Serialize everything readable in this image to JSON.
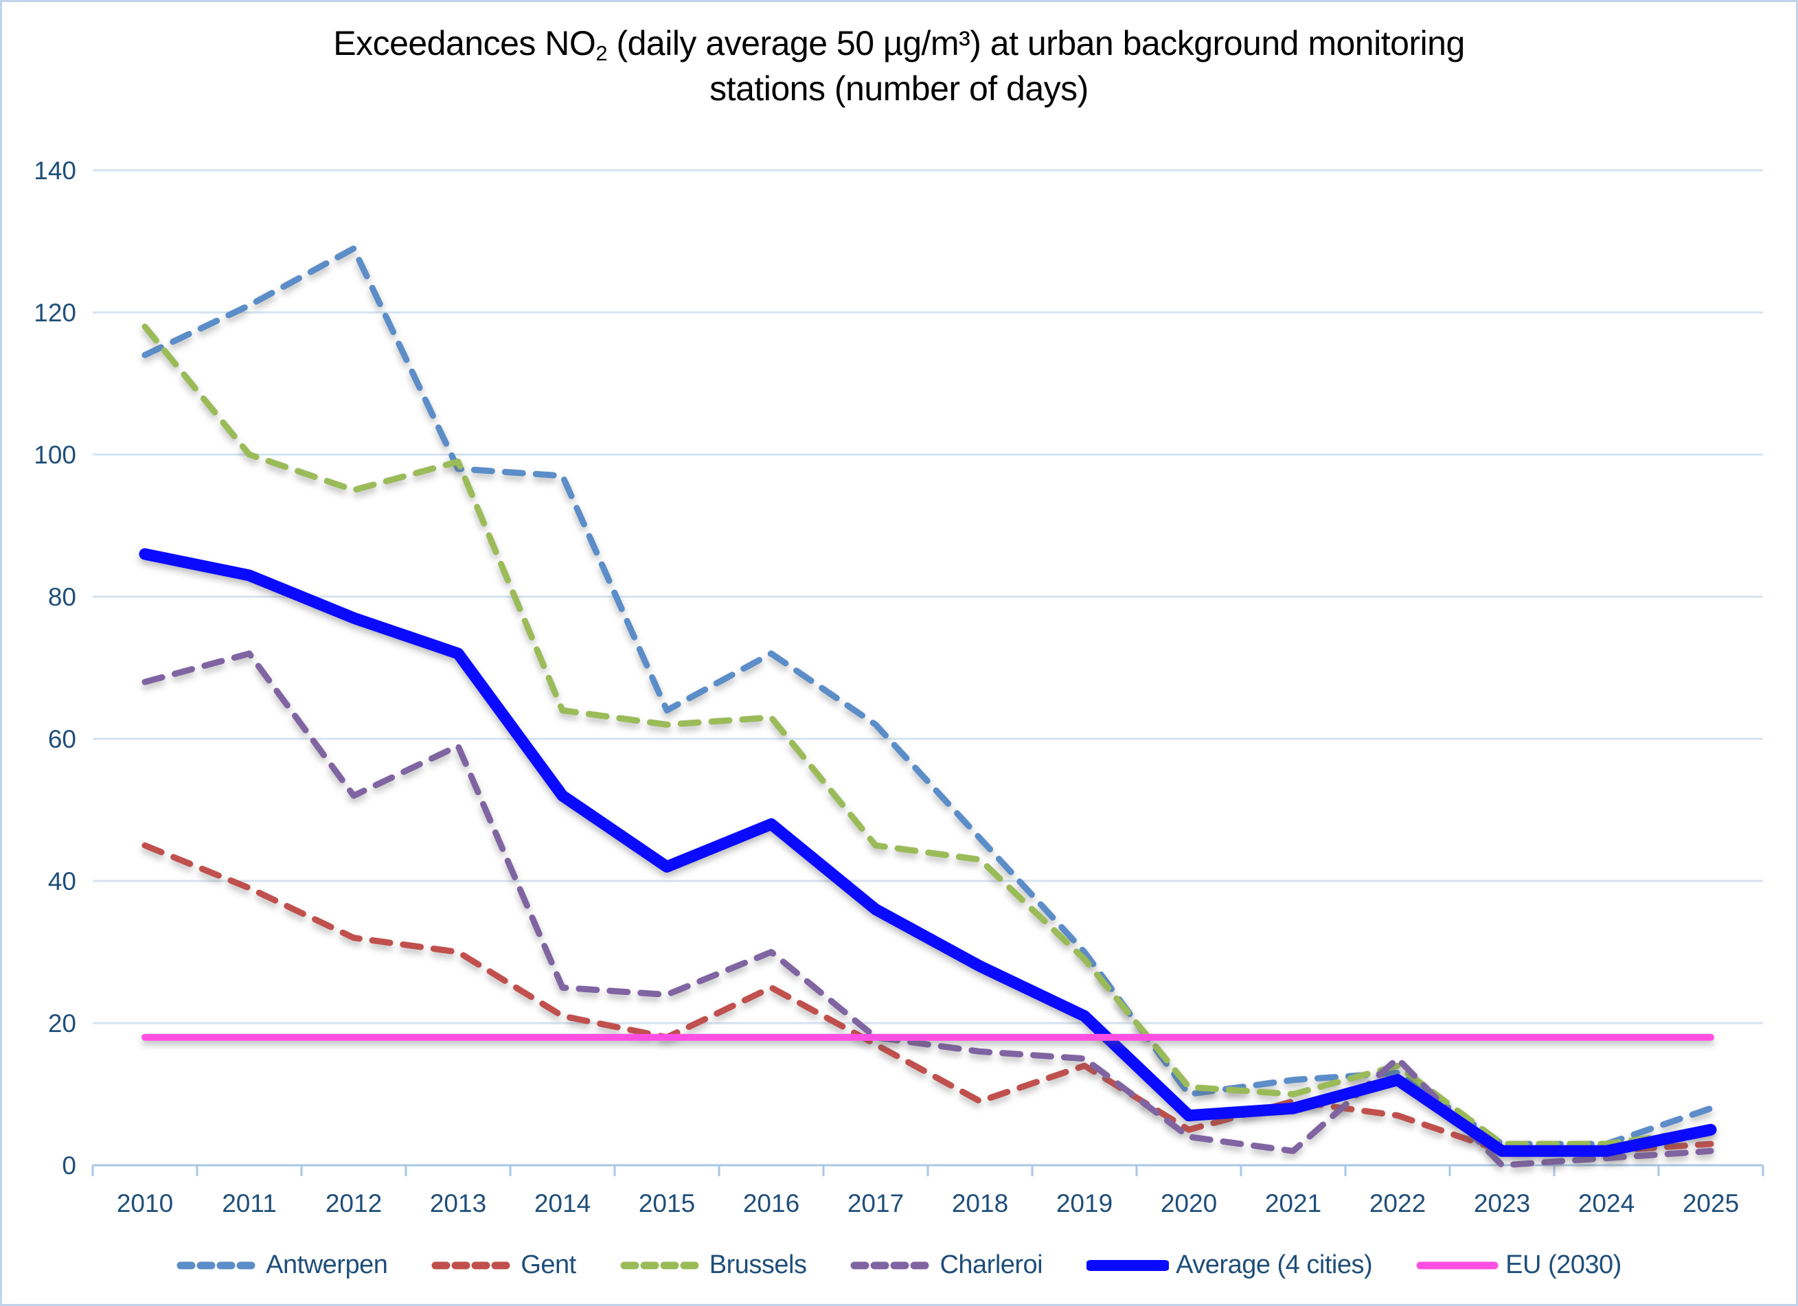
{
  "title": {
    "prefix": "Exceedances NO",
    "subscript": "2",
    "suffix": " (daily average 50 µg/m³) at urban background monitoring stations (number of days)"
  },
  "chart_data": {
    "type": "line",
    "title": "Exceedances NO2 (daily average 50 µg/m³) at urban background monitoring stations (number of days)",
    "categories": [
      2010,
      2011,
      2012,
      2013,
      2014,
      2015,
      2016,
      2017,
      2018,
      2019,
      2020,
      2021,
      2022,
      2023,
      2024,
      2025
    ],
    "xlabel": "",
    "ylabel": "",
    "ylim": [
      0,
      140
    ],
    "yticks": [
      0,
      20,
      40,
      60,
      80,
      100,
      120,
      140
    ],
    "grid": "horizontal",
    "legend_position": "bottom",
    "series": [
      {
        "name": "Antwerpen",
        "color": "#5B8DC8",
        "line_style": "dashed",
        "width": 9,
        "values": [
          114,
          121,
          129,
          98,
          97,
          64,
          72,
          62,
          46,
          30,
          10,
          12,
          13,
          3,
          3,
          8
        ]
      },
      {
        "name": "Gent",
        "color": "#C0504D",
        "line_style": "dashed",
        "width": 9,
        "values": [
          45,
          39,
          32,
          30,
          21,
          18,
          25,
          17,
          9,
          14,
          5,
          9,
          7,
          2,
          2,
          3
        ]
      },
      {
        "name": "Brussels",
        "color": "#9BBB59",
        "line_style": "dashed",
        "width": 9,
        "values": [
          118,
          100,
          95,
          99,
          64,
          62,
          63,
          45,
          43,
          29,
          11,
          10,
          14,
          3,
          3,
          5
        ]
      },
      {
        "name": "Charleroi",
        "color": "#8064A2",
        "line_style": "dashed",
        "width": 9,
        "values": [
          68,
          72,
          52,
          59,
          25,
          24,
          30,
          18,
          16,
          15,
          4,
          2,
          15,
          0,
          1,
          2
        ]
      },
      {
        "name": "Average (4 cities)",
        "color": "#0A0AFF",
        "line_style": "solid",
        "width": 17,
        "values": [
          86,
          83,
          77,
          72,
          52,
          42,
          48,
          36,
          28,
          21,
          7,
          8,
          12,
          2,
          2,
          5
        ]
      },
      {
        "name": "EU (2030)",
        "color": "#FF4FE3",
        "line_style": "solid",
        "width": 10,
        "values": [
          18,
          18,
          18,
          18,
          18,
          18,
          18,
          18,
          18,
          18,
          18,
          18,
          18,
          18,
          18,
          18
        ]
      }
    ]
  },
  "colors": {
    "grid": "#D5E3F1",
    "axis": "#A9C7E5",
    "tick_label": "#1F4E79",
    "frame": "#BFD4E9",
    "background": "#FFFFFF",
    "title_text": "#000000"
  }
}
